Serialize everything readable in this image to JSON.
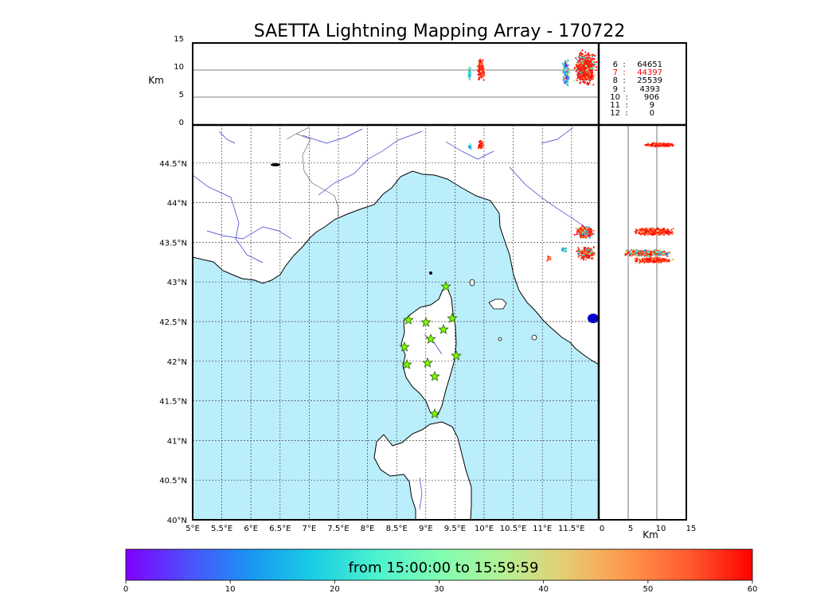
{
  "title": "SAETTA Lightning Mapping Array - 170722",
  "time_range_text": "from 15:00:00 to 15:59:59",
  "altitude_axis": {
    "label": "Km",
    "ticks": [
      "15",
      "10",
      "5",
      "0"
    ],
    "gridlines_km": [
      5,
      10
    ],
    "range_km": [
      0,
      15
    ]
  },
  "map": {
    "lat_ticks": [
      "44.5°N",
      "44°N",
      "43.5°N",
      "43°N",
      "42.5°N",
      "42°N",
      "41.5°N",
      "41°N",
      "40.5°N",
      "40°N"
    ],
    "lon_ticks": [
      "5°E",
      "5.5°E",
      "6°E",
      "6.5°E",
      "7°E",
      "7.5°E",
      "8°E",
      "8.5°E",
      "9°E",
      "9.5°E",
      "10°E",
      "10.5°E",
      "11°E",
      "11.5°E"
    ],
    "lat_range": [
      40,
      45
    ],
    "lon_range": [
      5,
      12
    ],
    "sea_color": "#bbeefb",
    "land_color": "#ffffff",
    "station_color": "#7cfc00",
    "stations_count": 12
  },
  "side_axis": {
    "label": "Km",
    "ticks": [
      "0",
      "5",
      "10",
      "15"
    ]
  },
  "station_counts": [
    {
      "stations": "6",
      "sep": ":",
      "count": "64651",
      "highlight": false
    },
    {
      "stations": "7",
      "sep": ":",
      "count": "44397",
      "highlight": true
    },
    {
      "stations": "8",
      "sep": ":",
      "count": "25539",
      "highlight": false
    },
    {
      "stations": "9",
      "sep": ":",
      "count": "4393",
      "highlight": false
    },
    {
      "stations": "10",
      "sep": ":",
      "count": "906",
      "highlight": false
    },
    {
      "stations": "11",
      "sep": ":",
      "count": "9",
      "highlight": false
    },
    {
      "stations": "12",
      "sep": ":",
      "count": "0",
      "highlight": false
    }
  ],
  "highlight_color": "#ff0000",
  "colorbar": {
    "ticks": [
      "0",
      "10",
      "20",
      "30",
      "40",
      "50",
      "60"
    ],
    "range": [
      0,
      60
    ],
    "colors": [
      "#8000ff",
      "#4c50fc",
      "#1996f3",
      "#19cee3",
      "#4cf2ce",
      "#80feb3",
      "#b3f295",
      "#e6cd73",
      "#ff964c",
      "#ff5a2d",
      "#ff0000"
    ]
  }
}
